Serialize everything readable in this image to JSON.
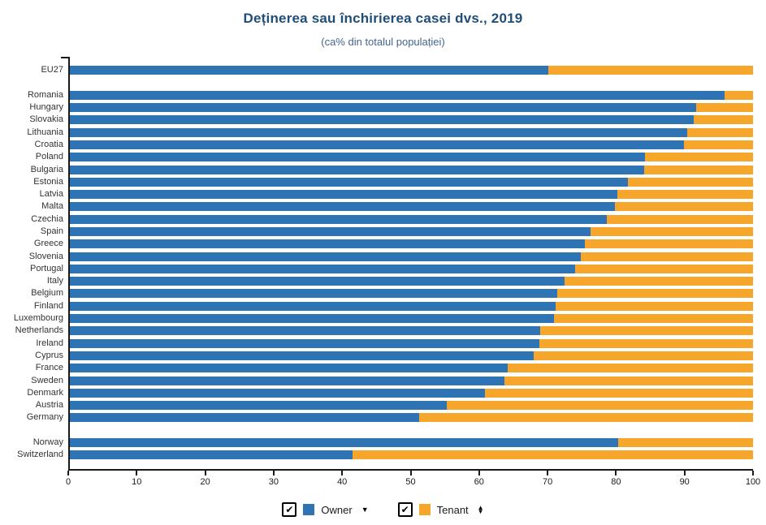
{
  "header": {
    "title": "Deținerea sau închirierea casei dvs., 2019",
    "subtitle": "(ca% din totalul populației)"
  },
  "colors": {
    "owner": "#2e74b5",
    "tenant": "#f6a62a",
    "axis": "#1a1a1a",
    "title": "#1f4e79",
    "subtitle": "#44668c",
    "category_label": "#333333"
  },
  "legend": {
    "items": [
      {
        "checkbox": "checked",
        "swatch": "#2e74b5",
        "label": "Owner",
        "sort_icon": "caret-down"
      },
      {
        "checkbox": "checked",
        "swatch": "#f6a62a",
        "label": "Tenant",
        "sort_icon": "sort-updown"
      }
    ]
  },
  "chart_data": {
    "type": "bar",
    "orientation": "horizontal",
    "stacked": true,
    "title": "Deținerea sau închirierea casei dvs., 2019",
    "subtitle": "(ca% din totalul populației)",
    "unit": "% of total population",
    "xlim": [
      0,
      100
    ],
    "x_ticks": [
      0,
      10,
      20,
      30,
      40,
      50,
      60,
      70,
      80,
      90,
      100
    ],
    "grid": false,
    "legend_position": "bottom",
    "series": [
      {
        "name": "Owner",
        "color": "#2e74b5"
      },
      {
        "name": "Tenant",
        "color": "#f6a62a"
      }
    ],
    "rows": [
      {
        "label": "EU27",
        "owner": 70.0,
        "tenant": 30.0
      },
      {
        "spacer": true
      },
      {
        "label": "Romania",
        "owner": 95.8,
        "tenant": 4.2
      },
      {
        "label": "Hungary",
        "owner": 91.7,
        "tenant": 8.3
      },
      {
        "label": "Slovakia",
        "owner": 91.3,
        "tenant": 8.7
      },
      {
        "label": "Lithuania",
        "owner": 90.4,
        "tenant": 9.6
      },
      {
        "label": "Croatia",
        "owner": 89.9,
        "tenant": 10.1
      },
      {
        "label": "Poland",
        "owner": 84.2,
        "tenant": 15.8
      },
      {
        "label": "Bulgaria",
        "owner": 84.1,
        "tenant": 15.9
      },
      {
        "label": "Estonia",
        "owner": 81.7,
        "tenant": 18.3
      },
      {
        "label": "Latvia",
        "owner": 80.2,
        "tenant": 19.8
      },
      {
        "label": "Malta",
        "owner": 79.8,
        "tenant": 20.2
      },
      {
        "label": "Czechia",
        "owner": 78.6,
        "tenant": 21.4
      },
      {
        "label": "Spain",
        "owner": 76.2,
        "tenant": 23.8
      },
      {
        "label": "Greece",
        "owner": 75.4,
        "tenant": 24.6
      },
      {
        "label": "Slovenia",
        "owner": 74.8,
        "tenant": 25.2
      },
      {
        "label": "Portugal",
        "owner": 74.0,
        "tenant": 26.0
      },
      {
        "label": "Italy",
        "owner": 72.4,
        "tenant": 27.6
      },
      {
        "label": "Belgium",
        "owner": 71.3,
        "tenant": 28.7
      },
      {
        "label": "Finland",
        "owner": 71.1,
        "tenant": 28.9
      },
      {
        "label": "Luxembourg",
        "owner": 70.9,
        "tenant": 29.1
      },
      {
        "label": "Netherlands",
        "owner": 68.9,
        "tenant": 31.1
      },
      {
        "label": "Ireland",
        "owner": 68.7,
        "tenant": 31.3
      },
      {
        "label": "Cyprus",
        "owner": 67.9,
        "tenant": 32.1
      },
      {
        "label": "France",
        "owner": 64.1,
        "tenant": 35.9
      },
      {
        "label": "Sweden",
        "owner": 63.6,
        "tenant": 36.4
      },
      {
        "label": "Denmark",
        "owner": 60.8,
        "tenant": 39.2
      },
      {
        "label": "Austria",
        "owner": 55.2,
        "tenant": 44.8
      },
      {
        "label": "Germany",
        "owner": 51.1,
        "tenant": 48.9
      },
      {
        "spacer": true
      },
      {
        "label": "Norway",
        "owner": 80.3,
        "tenant": 19.7
      },
      {
        "label": "Switzerland",
        "owner": 41.4,
        "tenant": 58.6
      }
    ]
  }
}
